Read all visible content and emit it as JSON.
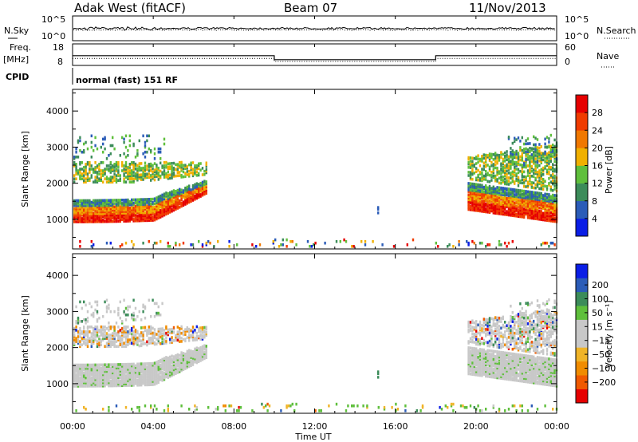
{
  "header": {
    "station": "Adak West (fitACF)",
    "beam": "Beam 07",
    "date": "11/Nov/2013"
  },
  "params": {
    "nsky_label": "N.Sky",
    "nsearch_label": "N.Search",
    "freq_label": "Freq.",
    "freq_unit": "[MHz]",
    "nave_label": "Nave",
    "cpid_label": "CPID",
    "cpid_value": "normal (fast) 151 RF",
    "noise_ticks": [
      "10^5",
      "10^0"
    ],
    "freq_ticks": [
      "18",
      "8"
    ],
    "nave_ticks": [
      "60",
      "0"
    ]
  },
  "colors": {
    "power": [
      "#0a1ee6",
      "#2b5cb8",
      "#3c8c5a",
      "#5fbf3c",
      "#f0b000",
      "#f07800",
      "#f03c00",
      "#e60000"
    ],
    "velocity": [
      "#e60000",
      "#f05a00",
      "#f08c00",
      "#f0b428",
      "#c8c8c8",
      "#c8c8c8",
      "#5fbf3c",
      "#3c8c5a",
      "#2b5cb8",
      "#0a1ee6"
    ],
    "grey": "#c8c8c8"
  },
  "chart_data": [
    {
      "type": "line",
      "title": "",
      "panel": "frequency",
      "xlabel": "",
      "ylabel": "Freq. [MHz]",
      "xlim": [
        0,
        24
      ],
      "ylim": [
        8,
        18
      ],
      "series": [
        {
          "name": "Freq.",
          "x": [
            0,
            10,
            10,
            18,
            18,
            24
          ],
          "values": [
            12.5,
            12.5,
            10.5,
            10.5,
            12.5,
            12.5
          ]
        },
        {
          "name": "Nave",
          "x": [
            0,
            10,
            10,
            18,
            18,
            24
          ],
          "values": [
            11.1,
            11.1,
            9.6,
            9.6,
            11.1,
            11.1
          ]
        }
      ]
    },
    {
      "type": "heatmap",
      "title": "",
      "panel": "power",
      "xlabel": "",
      "ylabel": "Slant Range [km]",
      "xlim": [
        0,
        24
      ],
      "ylim": [
        180,
        4600
      ],
      "y_ticks": [
        1000,
        2000,
        3000,
        4000
      ],
      "colorbar_label": "Power [dB]",
      "colorbar_ticks": [
        4,
        8,
        12,
        16,
        20,
        24,
        28
      ],
      "colorbar_range": [
        0,
        32
      ],
      "grid": false
    },
    {
      "type": "heatmap",
      "title": "",
      "panel": "velocity",
      "xlabel": "Time UT",
      "ylabel": "Slant Range [km]",
      "xlim": [
        0,
        24
      ],
      "ylim": [
        180,
        4600
      ],
      "x_ticks": [
        "00:00",
        "04:00",
        "08:00",
        "12:00",
        "16:00",
        "20:00",
        "00:00"
      ],
      "y_ticks": [
        1000,
        2000,
        3000,
        4000
      ],
      "colorbar_label": "Velocity [m s⁻¹]",
      "colorbar_ticks": [
        -200,
        -100,
        -50,
        -15,
        15,
        50,
        100,
        200
      ],
      "grid": false
    }
  ]
}
